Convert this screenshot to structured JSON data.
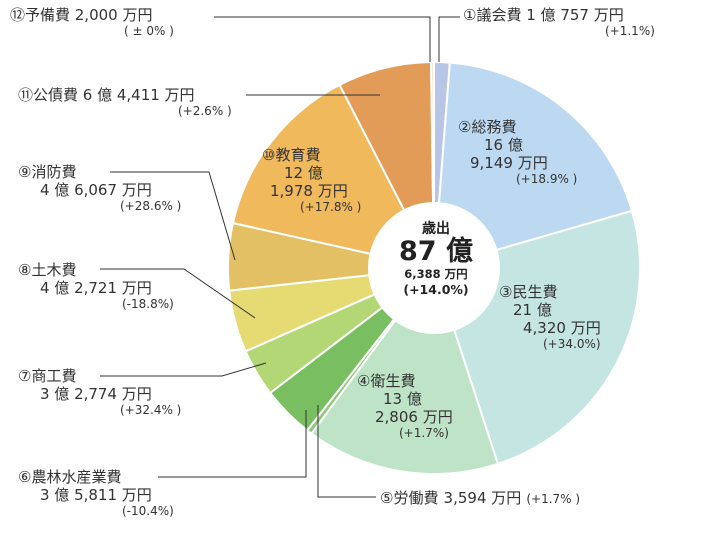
{
  "center": {
    "title": "歳出",
    "total": "87 億",
    "amount": "6,388 万円",
    "change": "(+14.0%)"
  },
  "chart_data": {
    "type": "pie",
    "unit": "万円",
    "title": "歳出",
    "total_label": "87 億 6,388 万円",
    "slices": [
      {
        "id": "s1",
        "label": "①議会費",
        "value": 10757,
        "amount": "1 億 757 万円",
        "change": "(+1.1%)",
        "color": "#b9c5e6"
      },
      {
        "id": "s2",
        "label": "②総務費",
        "value": 169149,
        "amount": "16 億 9,149 万円",
        "change": "(+18.9%)",
        "color": "#bcd9f1"
      },
      {
        "id": "s3",
        "label": "③民生費",
        "value": 214320,
        "amount": "21 億 4,320 万円",
        "change": "(+34.0%)",
        "color": "#c4e5e2"
      },
      {
        "id": "s4",
        "label": "④衛生費",
        "value": 132806,
        "amount": "13 億 2,806 万円",
        "change": "(+1.7%)",
        "color": "#bfe3c7"
      },
      {
        "id": "s5",
        "label": "⑤労働費",
        "value": 3594,
        "amount": "3,594 万円",
        "change": "(+1.7%)",
        "color": "#8ec77e"
      },
      {
        "id": "s6",
        "label": "⑥農林水産業費",
        "value": 35811,
        "amount": "3 億 5,811 万円",
        "change": "(-10.4%)",
        "color": "#79bf62"
      },
      {
        "id": "s7",
        "label": "⑦商工費",
        "value": 32774,
        "amount": "3 億 2,774 万円",
        "change": "(+32.4%)",
        "color": "#b3d774"
      },
      {
        "id": "s8",
        "label": "⑧土木費",
        "value": 42721,
        "amount": "4 億 2,721 万円",
        "change": "(-18.8%)",
        "color": "#e6db72"
      },
      {
        "id": "s9",
        "label": "⑨消防費",
        "value": 46067,
        "amount": "4 億 6,067 万円",
        "change": "(+28.6%)",
        "color": "#e3c063"
      },
      {
        "id": "s10",
        "label": "⑩教育費",
        "value": 121978,
        "amount": "12 億 1,978 万円",
        "change": "(+17.8%)",
        "color": "#efb95c"
      },
      {
        "id": "s11",
        "label": "⑪公債費",
        "value": 64411,
        "amount": "6 億 4,411 万円",
        "change": "(+2.6%)",
        "color": "#e29c58"
      },
      {
        "id": "s12",
        "label": "⑫予備費",
        "value": 2000,
        "amount": "2,000 万円",
        "change": "( ± 0%)",
        "color": "#f6e3c8"
      }
    ]
  },
  "labels": {
    "s1": {
      "name": "①議会費",
      "amt": "1 億 757 万円",
      "pct": "(+1.1%)"
    },
    "s2": {
      "name": "②総務費",
      "l2": "16 億",
      "l3": "9,149 万円",
      "pct": "(+18.9% )"
    },
    "s3": {
      "name": "③民生費",
      "l2": "21 億",
      "l3": "4,320 万円",
      "pct": "(+34.0%)"
    },
    "s4": {
      "name": "④衛生費",
      "l2": "13 億",
      "l3": "2,806 万円",
      "pct": "(+1.7%)"
    },
    "s5": {
      "name": "⑤労働費",
      "amt": "3,594 万円",
      "pct": "(+1.7% )"
    },
    "s6": {
      "name": "⑥農林水産業費",
      "amt": "3 億 5,811 万円",
      "pct": "(-10.4%)"
    },
    "s7": {
      "name": "⑦商工費",
      "amt": "3 億 2,774 万円",
      "pct": "(+32.4% )"
    },
    "s8": {
      "name": "⑧土木費",
      "amt": "4 億 2,721 万円",
      "pct": "(-18.8%)"
    },
    "s9": {
      "name": "⑨消防費",
      "amt": "4 億 6,067 万円",
      "pct": "(+28.6% )"
    },
    "s10": {
      "name": "⑩教育費",
      "l2": "12 億",
      "l3": "1,978 万円",
      "pct": "(+17.8% )"
    },
    "s11": {
      "name": "⑪公債費 6 億 4,411 万円",
      "pct": "(+2.6% )"
    },
    "s12": {
      "name": "⑫予備費 2,000 万円",
      "pct": "( ± 0% )"
    }
  }
}
